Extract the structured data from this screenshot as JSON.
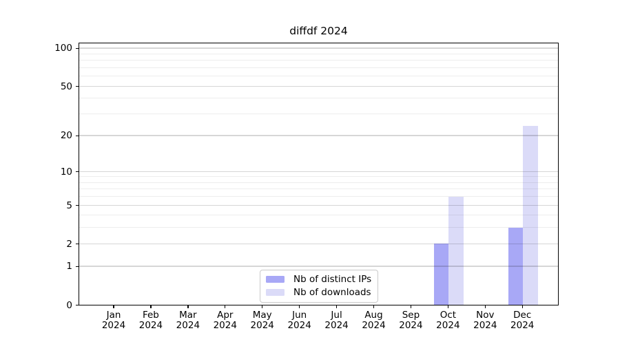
{
  "title": "diffdf 2024",
  "legend": {
    "items": [
      {
        "label": "Nb of distinct IPs",
        "color": "#a8a8f6"
      },
      {
        "label": "Nb of downloads",
        "color": "#dbdbf8"
      }
    ],
    "position": "lower center"
  },
  "chart_data": {
    "type": "bar",
    "title": "diffdf 2024",
    "x_year": "2024",
    "months": [
      "Jan",
      "Feb",
      "Mar",
      "Apr",
      "May",
      "Jun",
      "Jul",
      "Aug",
      "Sep",
      "Oct",
      "Nov",
      "Dec"
    ],
    "series": [
      {
        "name": "Nb of distinct IPs",
        "color": "#a8a8f6",
        "values": [
          0,
          0,
          0,
          0,
          0,
          0,
          0,
          0,
          0,
          2,
          0,
          3
        ]
      },
      {
        "name": "Nb of downloads",
        "color": "#dbdbf8",
        "values": [
          0,
          0,
          0,
          0,
          0,
          0,
          0,
          0,
          0,
          6,
          0,
          24
        ]
      }
    ],
    "y_scale": "log1p",
    "y_ticks": [
      0,
      1,
      2,
      5,
      10,
      20,
      50,
      100
    ],
    "y_minor_ticks": [
      3,
      4,
      6,
      7,
      8,
      9,
      30,
      40,
      60,
      70,
      80,
      90
    ],
    "ylim": [
      0,
      110
    ],
    "grid": true,
    "legend_position": "lower center"
  }
}
